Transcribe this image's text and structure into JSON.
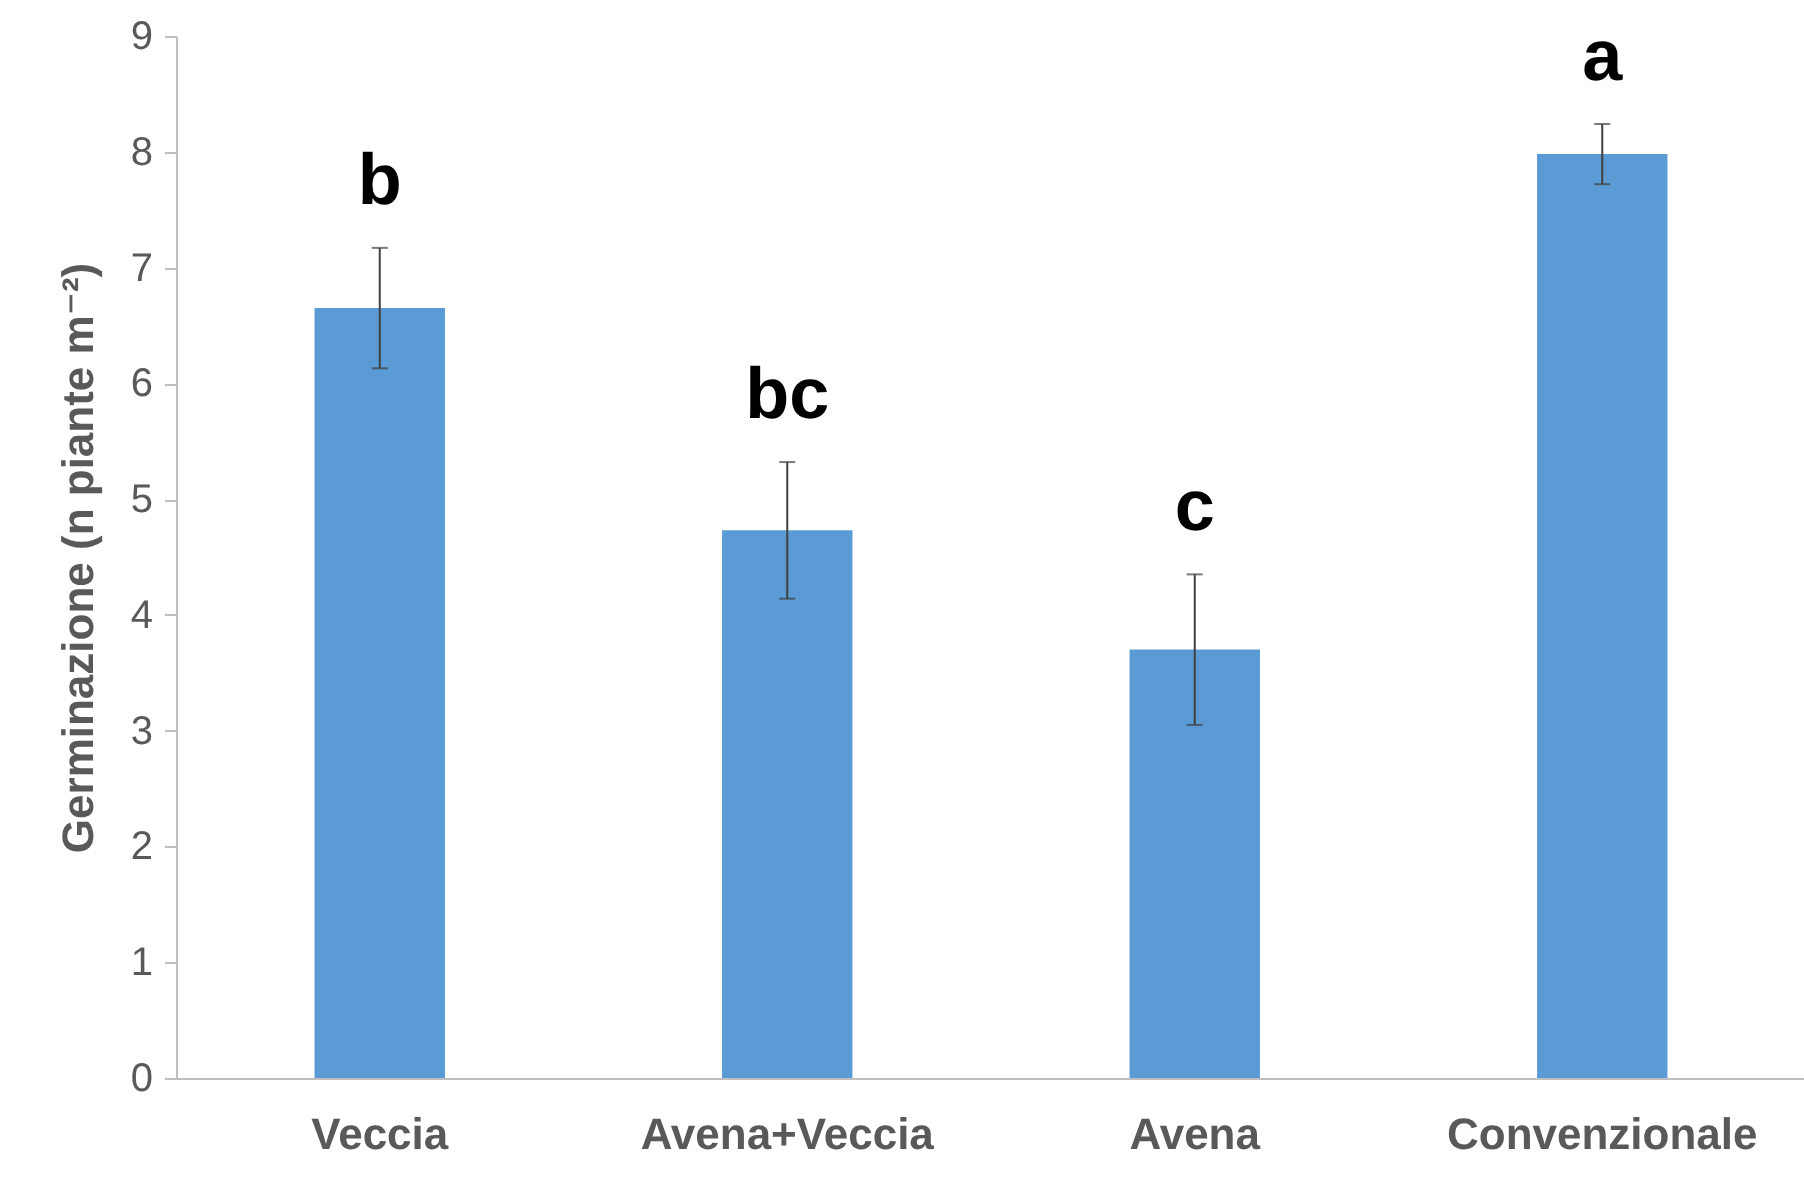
{
  "chart_data": {
    "type": "bar",
    "ylabel": "Germinazione (n piante m⁻²)",
    "categories": [
      "Veccia",
      "Avena+Veccia",
      "Avena",
      "Convenzionale"
    ],
    "values": [
      6.65,
      4.73,
      3.7,
      7.98
    ],
    "errors": [
      0.52,
      0.59,
      0.65,
      0.26
    ],
    "color": "#5b9bd5",
    "ylim": [
      0,
      9
    ],
    "yticks": [
      0,
      1,
      2,
      3,
      4,
      5,
      6,
      7,
      8,
      9
    ],
    "grid": false,
    "annotations": [
      "b",
      "bc",
      "c",
      "a"
    ]
  }
}
